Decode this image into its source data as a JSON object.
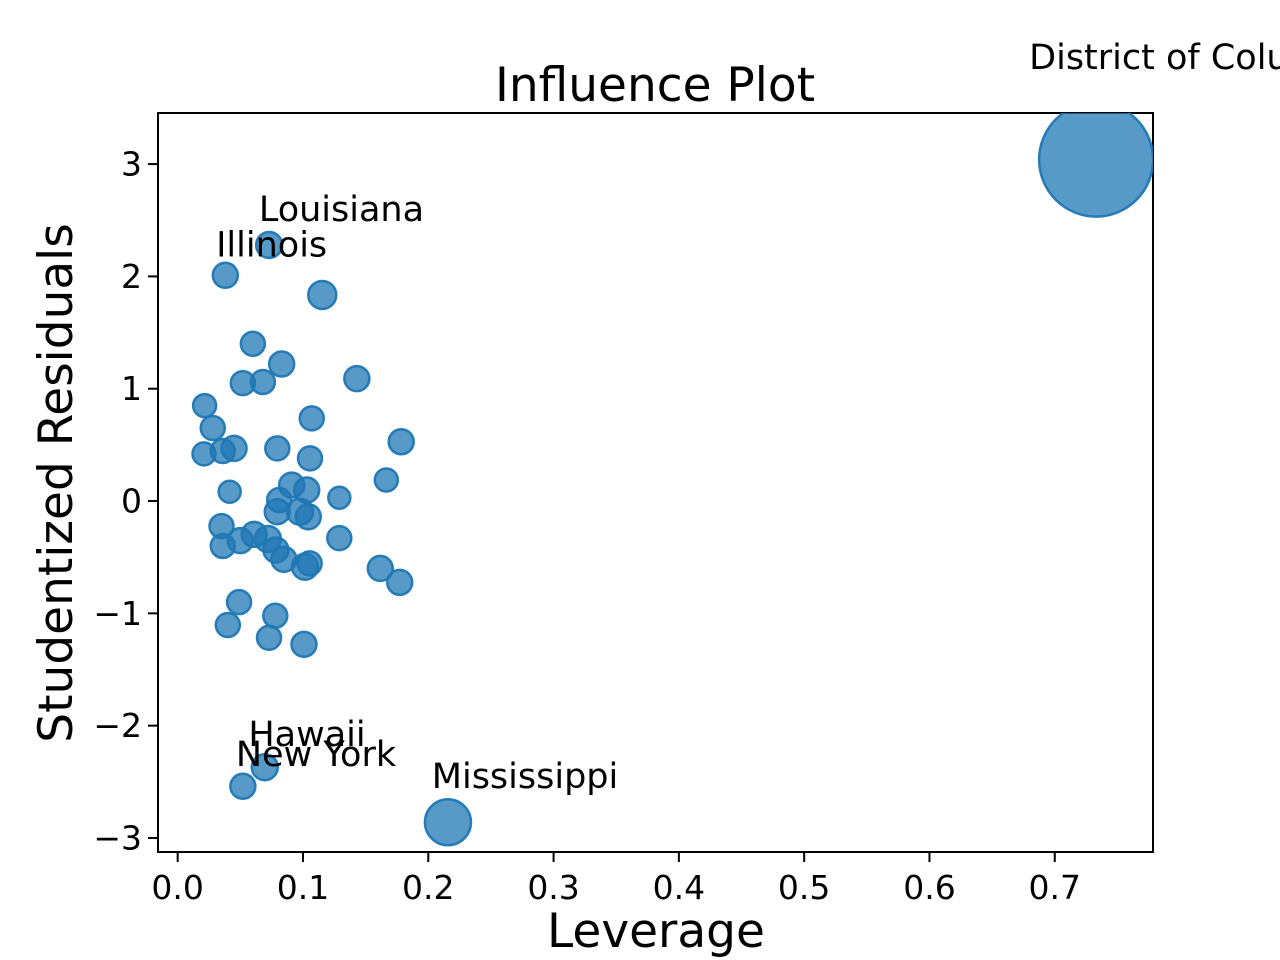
{
  "figure": {
    "title": "Influence Plot",
    "xlabel": "Leverage",
    "ylabel": "Studentized Residuals"
  },
  "chart_data": {
    "type": "scatter",
    "title": "Influence Plot",
    "xlabel": "Leverage",
    "ylabel": "Studentized Residuals",
    "xlim": [
      -0.0157,
      0.7784
    ],
    "ylim": [
      -3.125,
      3.455
    ],
    "grid": false,
    "legend": "none",
    "colors": {
      "marker_fill": "#1f77b4",
      "marker_fill_opacity": 0.75,
      "marker_edge": "#1f77b4",
      "spine": "#000000"
    },
    "xticks": [
      {
        "v": 0.0,
        "label": "0.0"
      },
      {
        "v": 0.1,
        "label": "0.1"
      },
      {
        "v": 0.2,
        "label": "0.2"
      },
      {
        "v": 0.3,
        "label": "0.3"
      },
      {
        "v": 0.4,
        "label": "0.4"
      },
      {
        "v": 0.5,
        "label": "0.5"
      },
      {
        "v": 0.6,
        "label": "0.6"
      },
      {
        "v": 0.7,
        "label": "0.7"
      }
    ],
    "yticks": [
      {
        "v": 3,
        "label": "3"
      },
      {
        "v": 2,
        "label": "2"
      },
      {
        "v": 1,
        "label": "1"
      },
      {
        "v": 0,
        "label": "0"
      },
      {
        "v": -1,
        "label": "−1"
      },
      {
        "v": -2,
        "label": "−2"
      },
      {
        "v": -3,
        "label": "−3"
      }
    ],
    "points": [
      {
        "x": 0.733,
        "y": 3.04,
        "r": 57,
        "state": "District of Columbia"
      },
      {
        "x": 0.073,
        "y": 2.28,
        "r": 13,
        "state": "Louisiana"
      },
      {
        "x": 0.038,
        "y": 2.01,
        "r": 12.5,
        "state": "Illinois"
      },
      {
        "x": 0.1154,
        "y": 1.835,
        "r": 14
      },
      {
        "x": 0.06,
        "y": 1.4,
        "r": 12
      },
      {
        "x": 0.083,
        "y": 1.22,
        "r": 12.5
      },
      {
        "x": 0.052,
        "y": 1.05,
        "r": 12
      },
      {
        "x": 0.068,
        "y": 1.06,
        "r": 12
      },
      {
        "x": 0.143,
        "y": 1.09,
        "r": 12.5
      },
      {
        "x": 0.0215,
        "y": 0.85,
        "r": 11.5
      },
      {
        "x": 0.028,
        "y": 0.65,
        "r": 12
      },
      {
        "x": 0.107,
        "y": 0.736,
        "r": 12
      },
      {
        "x": 0.021,
        "y": 0.42,
        "r": 11.5
      },
      {
        "x": 0.036,
        "y": 0.445,
        "r": 12
      },
      {
        "x": 0.045,
        "y": 0.469,
        "r": 12.5
      },
      {
        "x": 0.0795,
        "y": 0.469,
        "r": 12
      },
      {
        "x": 0.1056,
        "y": 0.38,
        "r": 12
      },
      {
        "x": 0.1784,
        "y": 0.528,
        "r": 12.5
      },
      {
        "x": 0.0415,
        "y": 0.083,
        "r": 11
      },
      {
        "x": 0.1665,
        "y": 0.187,
        "r": 11.5
      },
      {
        "x": 0.129,
        "y": 0.029,
        "r": 11
      },
      {
        "x": 0.091,
        "y": 0.142,
        "r": 12.5
      },
      {
        "x": 0.103,
        "y": 0.098,
        "r": 12.5
      },
      {
        "x": 0.081,
        "y": 0.009,
        "r": 12
      },
      {
        "x": 0.0795,
        "y": -0.095,
        "r": 12.5
      },
      {
        "x": 0.0976,
        "y": -0.095,
        "r": 13
      },
      {
        "x": 0.1042,
        "y": -0.14,
        "r": 12.5
      },
      {
        "x": 0.129,
        "y": -0.33,
        "r": 12
      },
      {
        "x": 0.035,
        "y": -0.223,
        "r": 12
      },
      {
        "x": 0.036,
        "y": -0.4,
        "r": 12
      },
      {
        "x": 0.05,
        "y": -0.353,
        "r": 12.5
      },
      {
        "x": 0.061,
        "y": -0.297,
        "r": 12.5
      },
      {
        "x": 0.072,
        "y": -0.338,
        "r": 13
      },
      {
        "x": 0.0784,
        "y": -0.436,
        "r": 12.5
      },
      {
        "x": 0.0848,
        "y": -0.519,
        "r": 12.5
      },
      {
        "x": 0.1016,
        "y": -0.585,
        "r": 13
      },
      {
        "x": 0.1053,
        "y": -0.555,
        "r": 12
      },
      {
        "x": 0.1617,
        "y": -0.6,
        "r": 12.5
      },
      {
        "x": 0.1772,
        "y": -0.724,
        "r": 12.5
      },
      {
        "x": 0.049,
        "y": -0.9,
        "r": 12
      },
      {
        "x": 0.04,
        "y": -1.104,
        "r": 12
      },
      {
        "x": 0.0779,
        "y": -1.021,
        "r": 12
      },
      {
        "x": 0.0729,
        "y": -1.217,
        "r": 12
      },
      {
        "x": 0.1008,
        "y": -1.276,
        "r": 12.5
      },
      {
        "x": 0.0695,
        "y": -2.37,
        "r": 13,
        "state": "Hawaii"
      },
      {
        "x": 0.052,
        "y": -2.54,
        "r": 12.5,
        "state": "New York"
      },
      {
        "x": 0.2157,
        "y": -2.86,
        "r": 23,
        "state": "Mississippi"
      }
    ],
    "annotations": [
      {
        "text": "District of Columbia",
        "x": 0.818,
        "y": 3.945
      },
      {
        "text": "Louisiana",
        "x": 0.1307,
        "y": 2.591
      },
      {
        "text": "Illinois",
        "x": 0.075,
        "y": 2.275
      },
      {
        "text": "Hawaii",
        "x": 0.1032,
        "y": -2.084
      },
      {
        "text": "New York",
        "x": 0.1104,
        "y": -2.262
      },
      {
        "text": "Mississippi",
        "x": 0.2772,
        "y": -2.458
      }
    ]
  }
}
